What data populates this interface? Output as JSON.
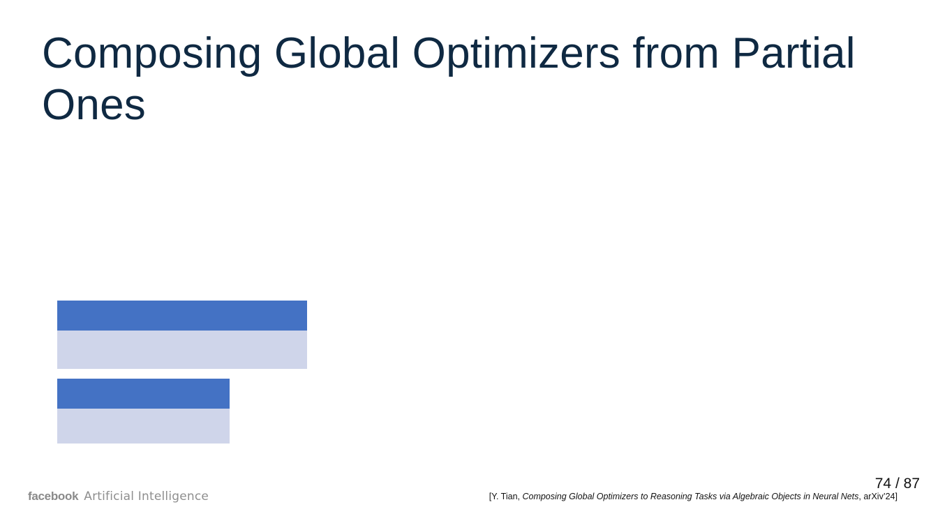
{
  "slide": {
    "title": "Composing Global Optimizers from Partial Ones"
  },
  "footer": {
    "logo_word": "facebook",
    "logo_sub": "Artificial Intelligence",
    "page_current": "74",
    "page_separator": "/",
    "page_total": "87",
    "citation": {
      "open": "[Y. Tian, ",
      "paper_title": "Composing Global Optimizers to Reasoning Tasks via Algebraic Objects in Neural Nets",
      "venue": ", arXiv’24]"
    }
  },
  "colors": {
    "title": "#0f2942",
    "table_header": "#4472c4",
    "table_body": "#cfd5ea"
  }
}
